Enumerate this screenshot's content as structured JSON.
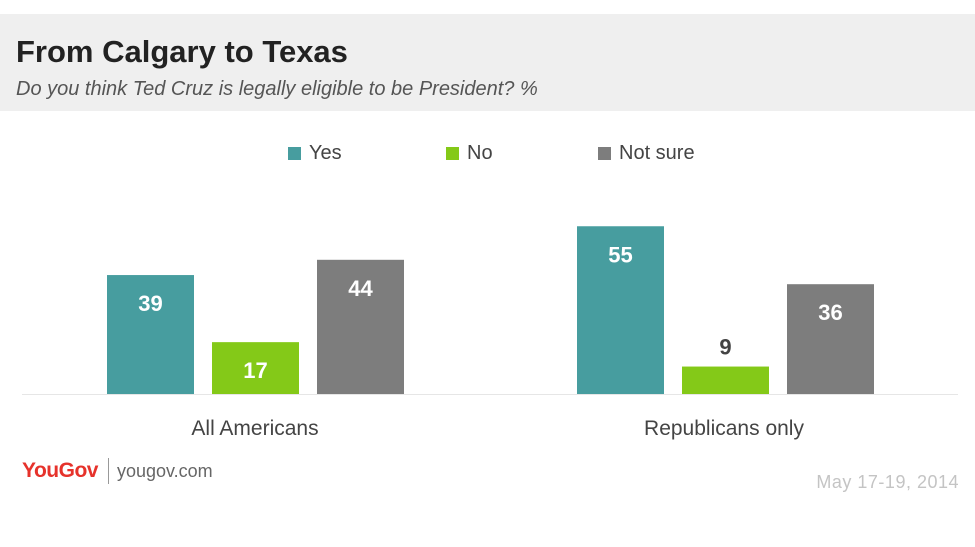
{
  "chart_data": {
    "type": "bar",
    "title": "From Calgary to Texas",
    "subtitle": "Do you think Ted Cruz is legally eligible to be President? %",
    "categories": [
      "All Americans",
      "Republicans only"
    ],
    "series": [
      {
        "name": "Yes",
        "values": [
          39,
          55
        ],
        "color": "#479d9f"
      },
      {
        "name": "No",
        "values": [
          17,
          9
        ],
        "color": "#84c918"
      },
      {
        "name": "Not sure",
        "values": [
          44,
          36
        ],
        "color": "#7d7d7d"
      }
    ],
    "ylim": [
      0,
      60
    ],
    "grid": false,
    "legend": "top-center"
  },
  "footer": {
    "brand": "YouGov",
    "url": "yougov.com",
    "date": "May 17-19, 2014"
  }
}
